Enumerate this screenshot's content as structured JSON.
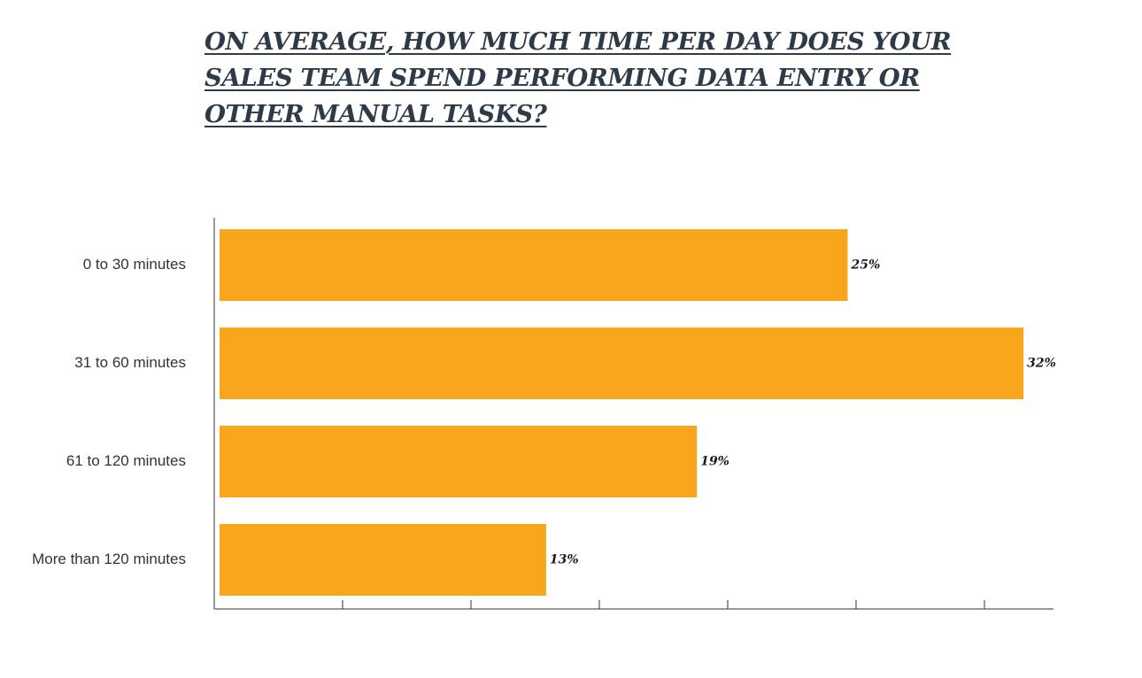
{
  "chart_data": {
    "type": "bar",
    "orientation": "horizontal",
    "title_lines": [
      "ON AVERAGE, HOW MUCH TIME PER DAY DOES YOUR",
      "SALES TEAM SPEND PERFORMING DATA ENTRY OR",
      "OTHER MANUAL TASKS?"
    ],
    "categories": [
      "0 to 30 minutes",
      "31 to 60 minutes",
      "61 to 120 minutes",
      "More than 120 minutes"
    ],
    "values": [
      25,
      32,
      19,
      13
    ],
    "value_labels": [
      "25%",
      "32%",
      "19%",
      "13%"
    ],
    "unit": "%",
    "xlim": [
      0,
      32.7
    ],
    "xtick_count": 7,
    "grid": false,
    "legend": "none",
    "bar_color": "#f9a61c",
    "axis_color": "#333333"
  }
}
